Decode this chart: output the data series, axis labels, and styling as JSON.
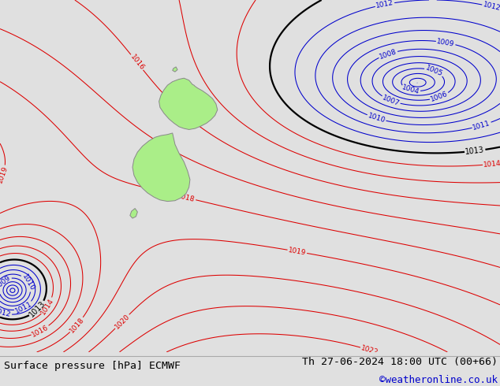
{
  "title_left": "Surface pressure [hPa] ECMWF",
  "title_right": "Th 27-06-2024 18:00 UTC (00+66)",
  "watermark": "©weatheronline.co.uk",
  "bg_color": "#e0e0e0",
  "fig_width": 6.34,
  "fig_height": 4.9,
  "dpi": 100,
  "red_color": "#dd0000",
  "blue_color": "#0000cc",
  "black_color": "#000000",
  "green_land_color": "#aaee88",
  "nz_outline_color": "#888888",
  "title_fontsize": 9.5,
  "label_fontsize": 6.5
}
